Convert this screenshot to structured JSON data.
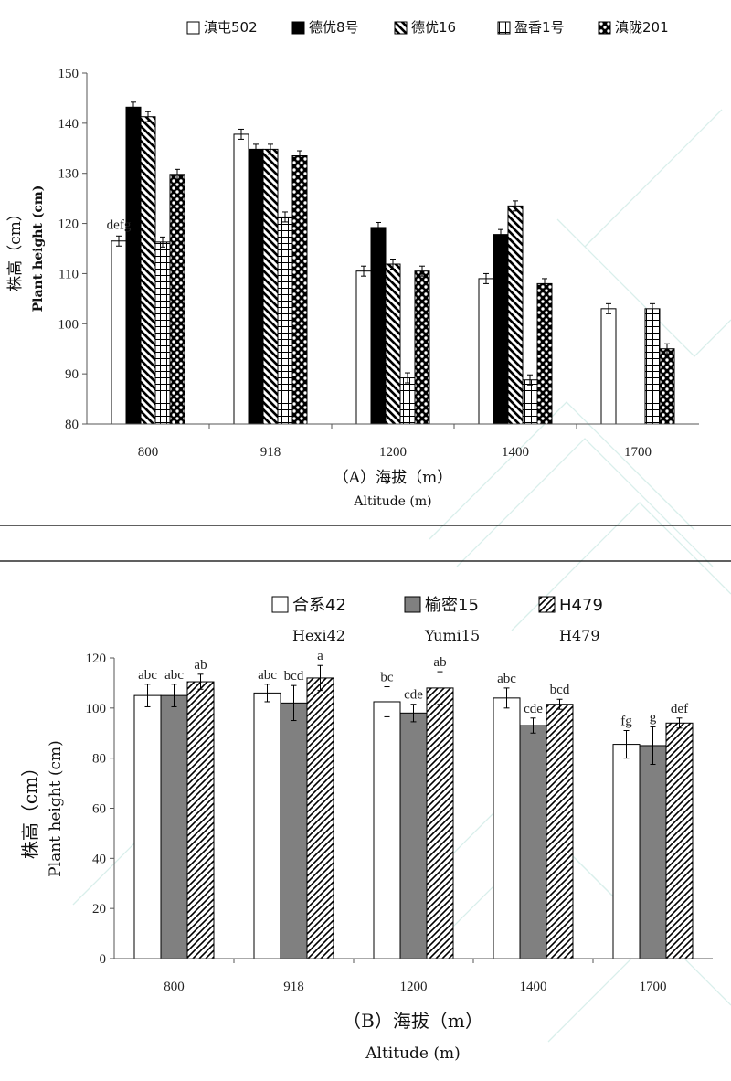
{
  "chart_data": [
    {
      "id": "A",
      "type": "bar",
      "categories": [
        "800",
        "918",
        "1200",
        "1400",
        "1700"
      ],
      "ylim": [
        80,
        150
      ],
      "yticks": [
        80,
        90,
        100,
        110,
        120,
        130,
        140,
        150
      ],
      "ylabel_cn": "株高（cm）",
      "ylabel_en": "Plant height (cm)",
      "xlabel_cn": "（A）海拔（m）",
      "xlabel_en": "Altitude (m)",
      "grid": false,
      "legend_position": "top",
      "series": [
        {
          "name": "滇屯502",
          "pattern": "white",
          "values": [
            116.5,
            137.8,
            110.5,
            109.0,
            103.0
          ],
          "errors": [
            1.0,
            1.0,
            1.0,
            1.0,
            1.0
          ]
        },
        {
          "name": "德优8号",
          "pattern": "black",
          "values": [
            143.2,
            134.8,
            119.2,
            117.8,
            null
          ],
          "errors": [
            1.0,
            1.0,
            1.0,
            1.0,
            0
          ]
        },
        {
          "name": "德优16",
          "pattern": "backslash",
          "values": [
            141.3,
            134.8,
            111.9,
            123.5,
            null
          ],
          "errors": [
            1.0,
            1.0,
            1.0,
            1.0,
            0
          ]
        },
        {
          "name": "盈香1号",
          "pattern": "grid",
          "values": [
            116.3,
            121.3,
            89.2,
            88.8,
            103.0
          ],
          "errors": [
            1.0,
            1.0,
            1.0,
            1.0,
            1.0
          ]
        },
        {
          "name": "滇陇201",
          "pattern": "checker",
          "values": [
            129.8,
            133.5,
            110.5,
            108.0,
            95.0
          ],
          "errors": [
            1.0,
            1.0,
            1.0,
            1.0,
            1.0
          ]
        }
      ],
      "annotations": [
        {
          "series": 0,
          "category": 0,
          "text": "defg"
        }
      ]
    },
    {
      "id": "B",
      "type": "bar",
      "categories": [
        "800",
        "918",
        "1200",
        "1400",
        "1700"
      ],
      "ylim": [
        0,
        120
      ],
      "yticks": [
        0,
        20,
        40,
        60,
        80,
        100,
        120
      ],
      "ylabel_cn": "株高（cm）",
      "ylabel_en": "Plant height (cm)",
      "xlabel_cn": "（B）海拔（m）",
      "xlabel_en": "Altitude (m)",
      "grid": false,
      "legend_position": "top",
      "series": [
        {
          "name": "合系42",
          "name_en": "Hexi42",
          "pattern": "white",
          "values": [
            105,
            106,
            102.5,
            104,
            85.5
          ],
          "errors": [
            4.5,
            3.5,
            6.0,
            4.0,
            5.5
          ],
          "labels": [
            "abc",
            "abc",
            "bc",
            "abc",
            "fg"
          ]
        },
        {
          "name": "榆密15",
          "name_en": "Yumi15",
          "pattern": "gray",
          "values": [
            105,
            102,
            98,
            93,
            85
          ],
          "errors": [
            4.5,
            7.0,
            3.5,
            3.0,
            7.5
          ],
          "labels": [
            "abc",
            "bcd",
            "cde",
            "cde",
            "g"
          ]
        },
        {
          "name": "H479",
          "name_en": "H479",
          "pattern": "slash",
          "values": [
            110.5,
            112,
            108,
            101.5,
            94
          ],
          "errors": [
            3.0,
            5.0,
            6.5,
            2.0,
            2.0
          ],
          "labels": [
            "ab",
            "a",
            "ab",
            "bcd",
            "def"
          ]
        }
      ]
    }
  ]
}
